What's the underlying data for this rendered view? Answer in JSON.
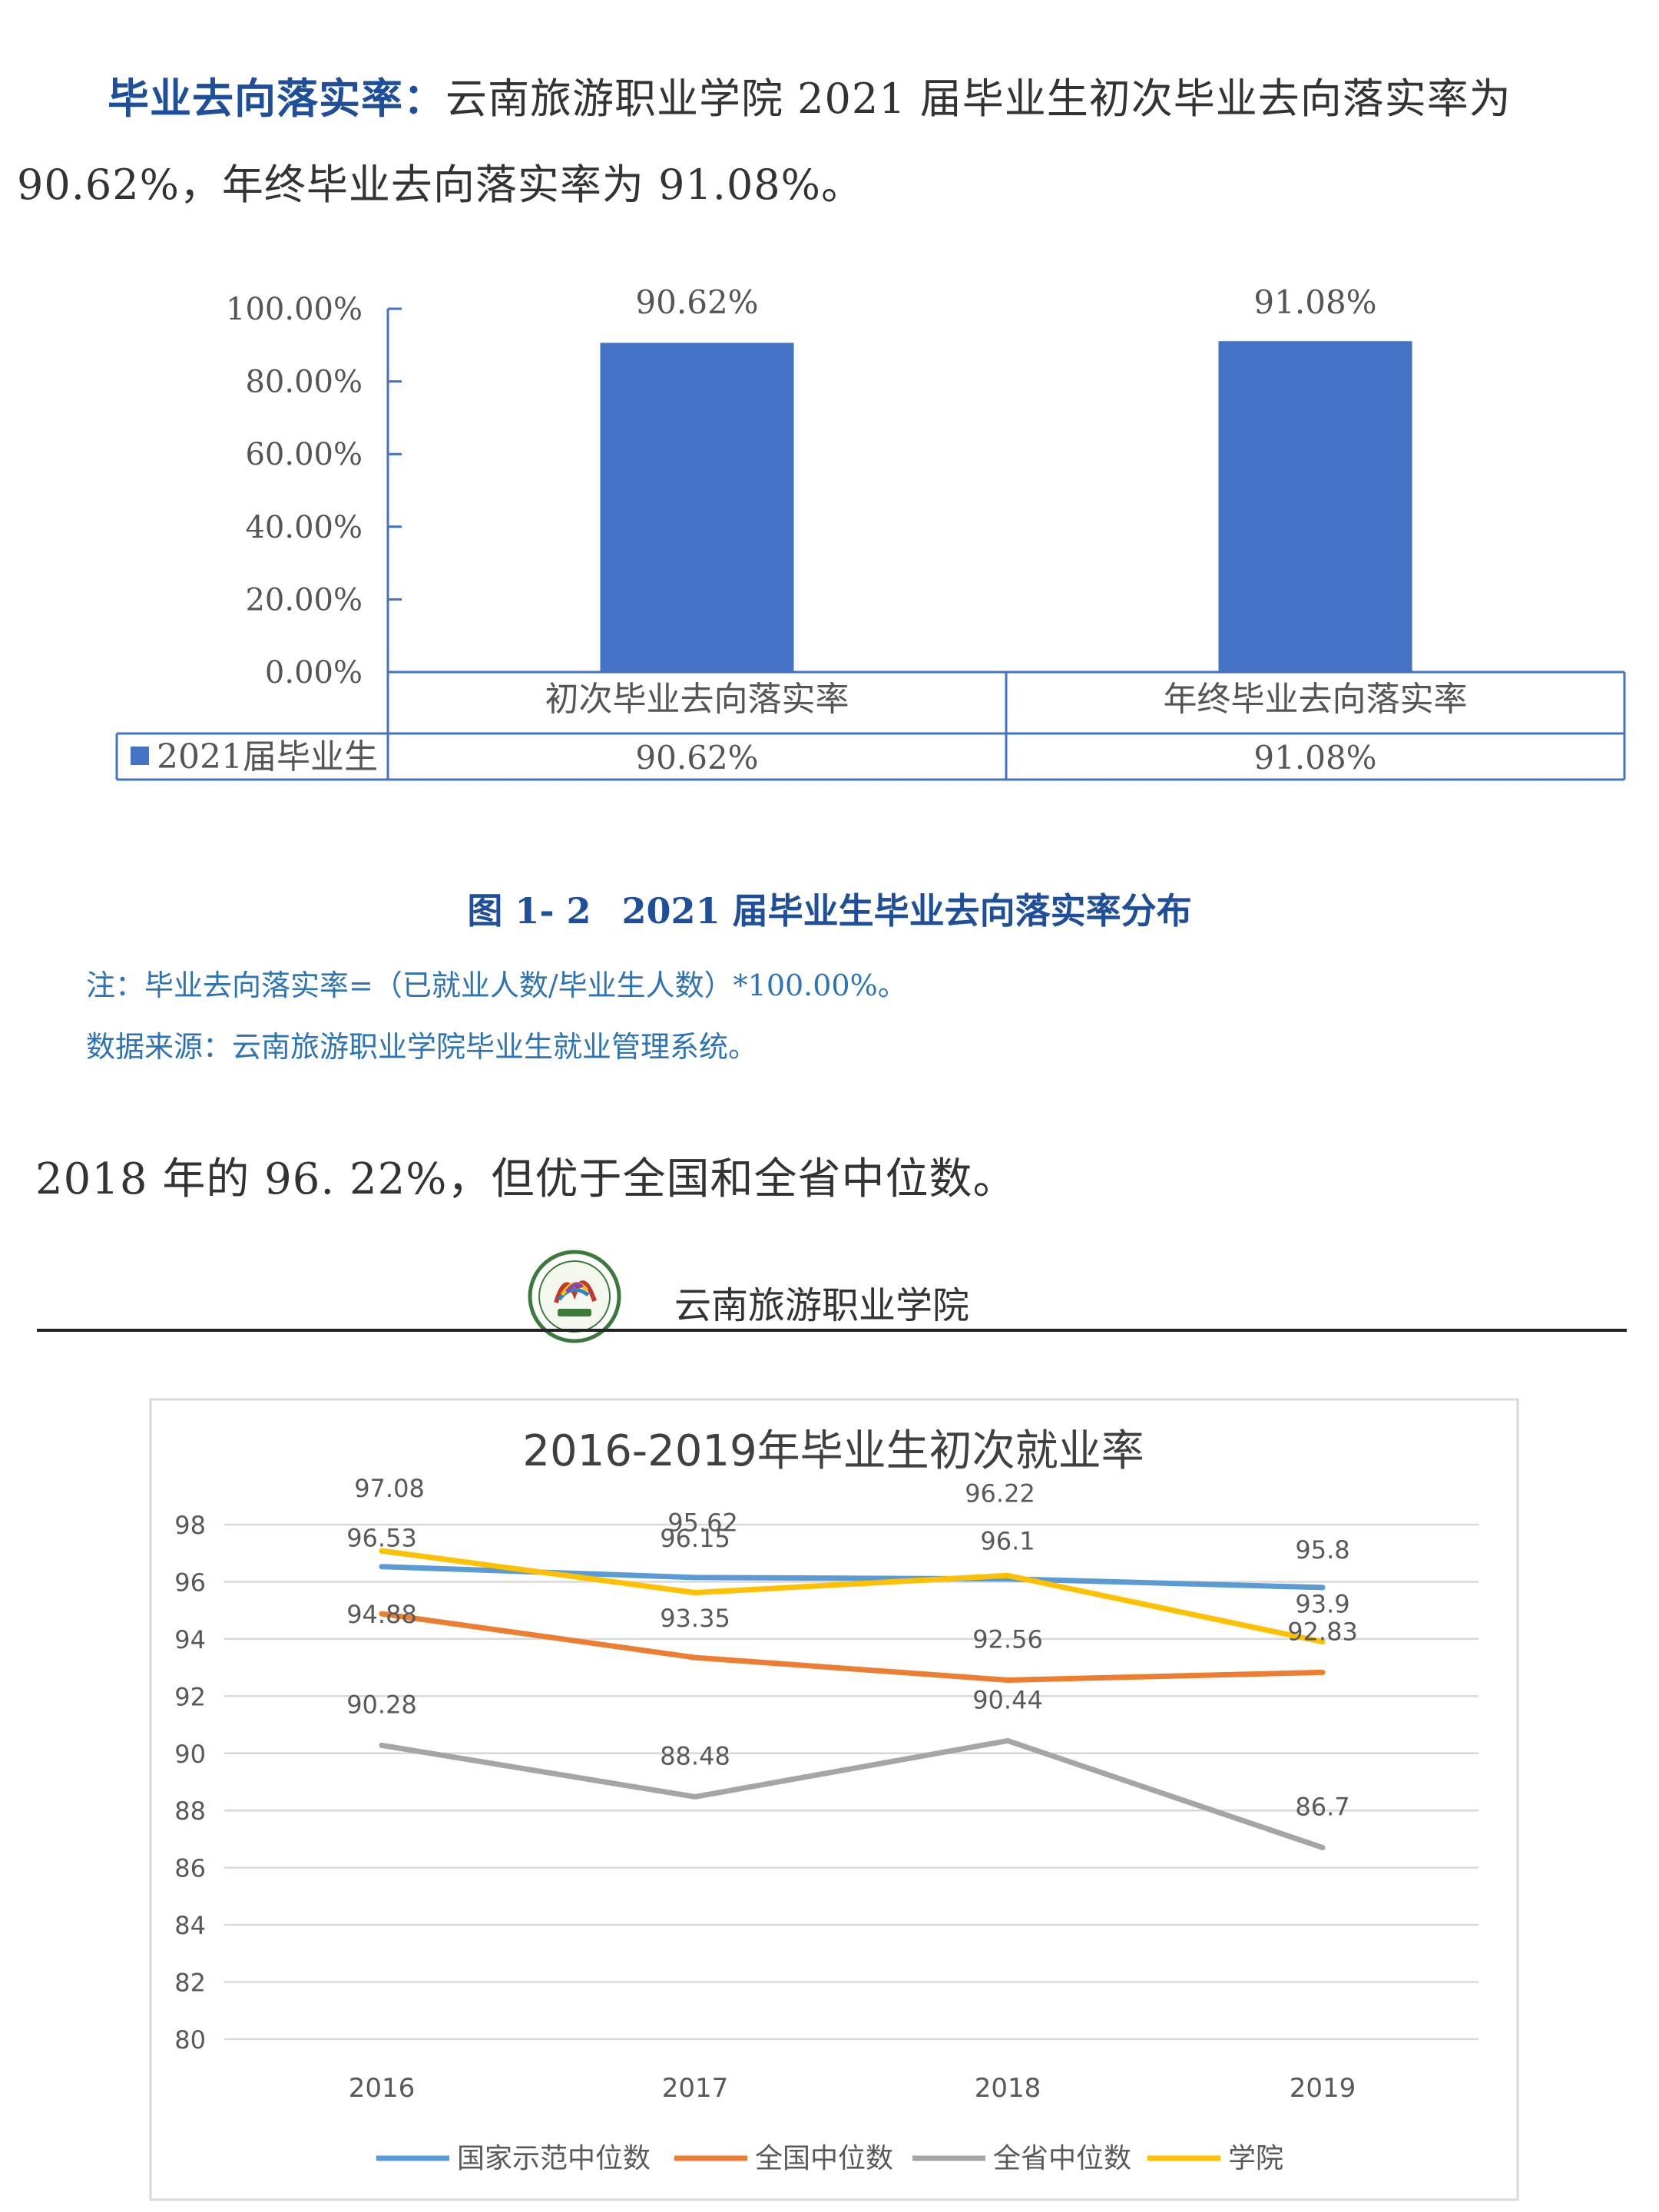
{
  "paragraph1": {
    "lead": "毕业去向落实率：",
    "text": "云南旅游职业学院 2021 届毕业生初次毕业去向落实率为 90.62%，年终毕业去向落实率为 91.08%。"
  },
  "chart_data": [
    {
      "type": "bar",
      "title": "",
      "categories": [
        "初次毕业去向落实率",
        "年终毕业去向落实率"
      ],
      "series": [
        {
          "name": "2021届毕业生",
          "values": [
            90.62,
            91.08
          ],
          "labels": [
            "90.62%",
            "91.08%"
          ],
          "color": "#4472C4"
        }
      ],
      "yticks": [
        "100.00%",
        "80.00%",
        "60.00%",
        "40.00%",
        "20.00%",
        "0.00%"
      ],
      "ylim": [
        0,
        100
      ],
      "legend": "data-table-left"
    },
    {
      "type": "line",
      "title": "2016-2019年毕业生初次就业率",
      "categories": [
        "2016",
        "2017",
        "2018",
        "2019"
      ],
      "ylim": [
        80,
        98
      ],
      "yticks": [
        "98",
        "96",
        "94",
        "92",
        "90",
        "88",
        "86",
        "84",
        "82",
        "80"
      ],
      "grid": true,
      "legend": "bottom",
      "series": [
        {
          "name": "国家示范中位数",
          "values": [
            96.53,
            96.15,
            96.1,
            95.8
          ],
          "labels": [
            "96.53",
            "96.15",
            "96.1",
            "95.8"
          ],
          "color": "#5B9BD5"
        },
        {
          "name": "全国中位数",
          "values": [
            94.88,
            93.35,
            92.56,
            92.83
          ],
          "labels": [
            "94.88",
            "93.35",
            "92.56",
            "92.83"
          ],
          "color": "#ED7D31"
        },
        {
          "name": "全省中位数",
          "values": [
            90.28,
            88.48,
            90.44,
            86.7
          ],
          "labels": [
            "90.28",
            "88.48",
            "90.44",
            "86.7"
          ],
          "color": "#A5A5A5"
        },
        {
          "name": "学院",
          "values": [
            97.08,
            95.62,
            96.22,
            93.9
          ],
          "labels": [
            "97.08",
            "95.62",
            "96.22",
            "93.9"
          ],
          "color": "#FFC000"
        }
      ]
    }
  ],
  "figure_caption": {
    "number": "图 1- 2",
    "title": "2021 届毕业生毕业去向落实率分布"
  },
  "note": "注：毕业去向落实率=（已就业人数/毕业生人数）*100.00%。",
  "source": "数据来源：云南旅游职业学院毕业生就业管理系统。",
  "paragraph2": "2018 年的 96. 22%，但优于全国和全省中位数。",
  "header": {
    "school_name": "云南旅游职业学院"
  }
}
